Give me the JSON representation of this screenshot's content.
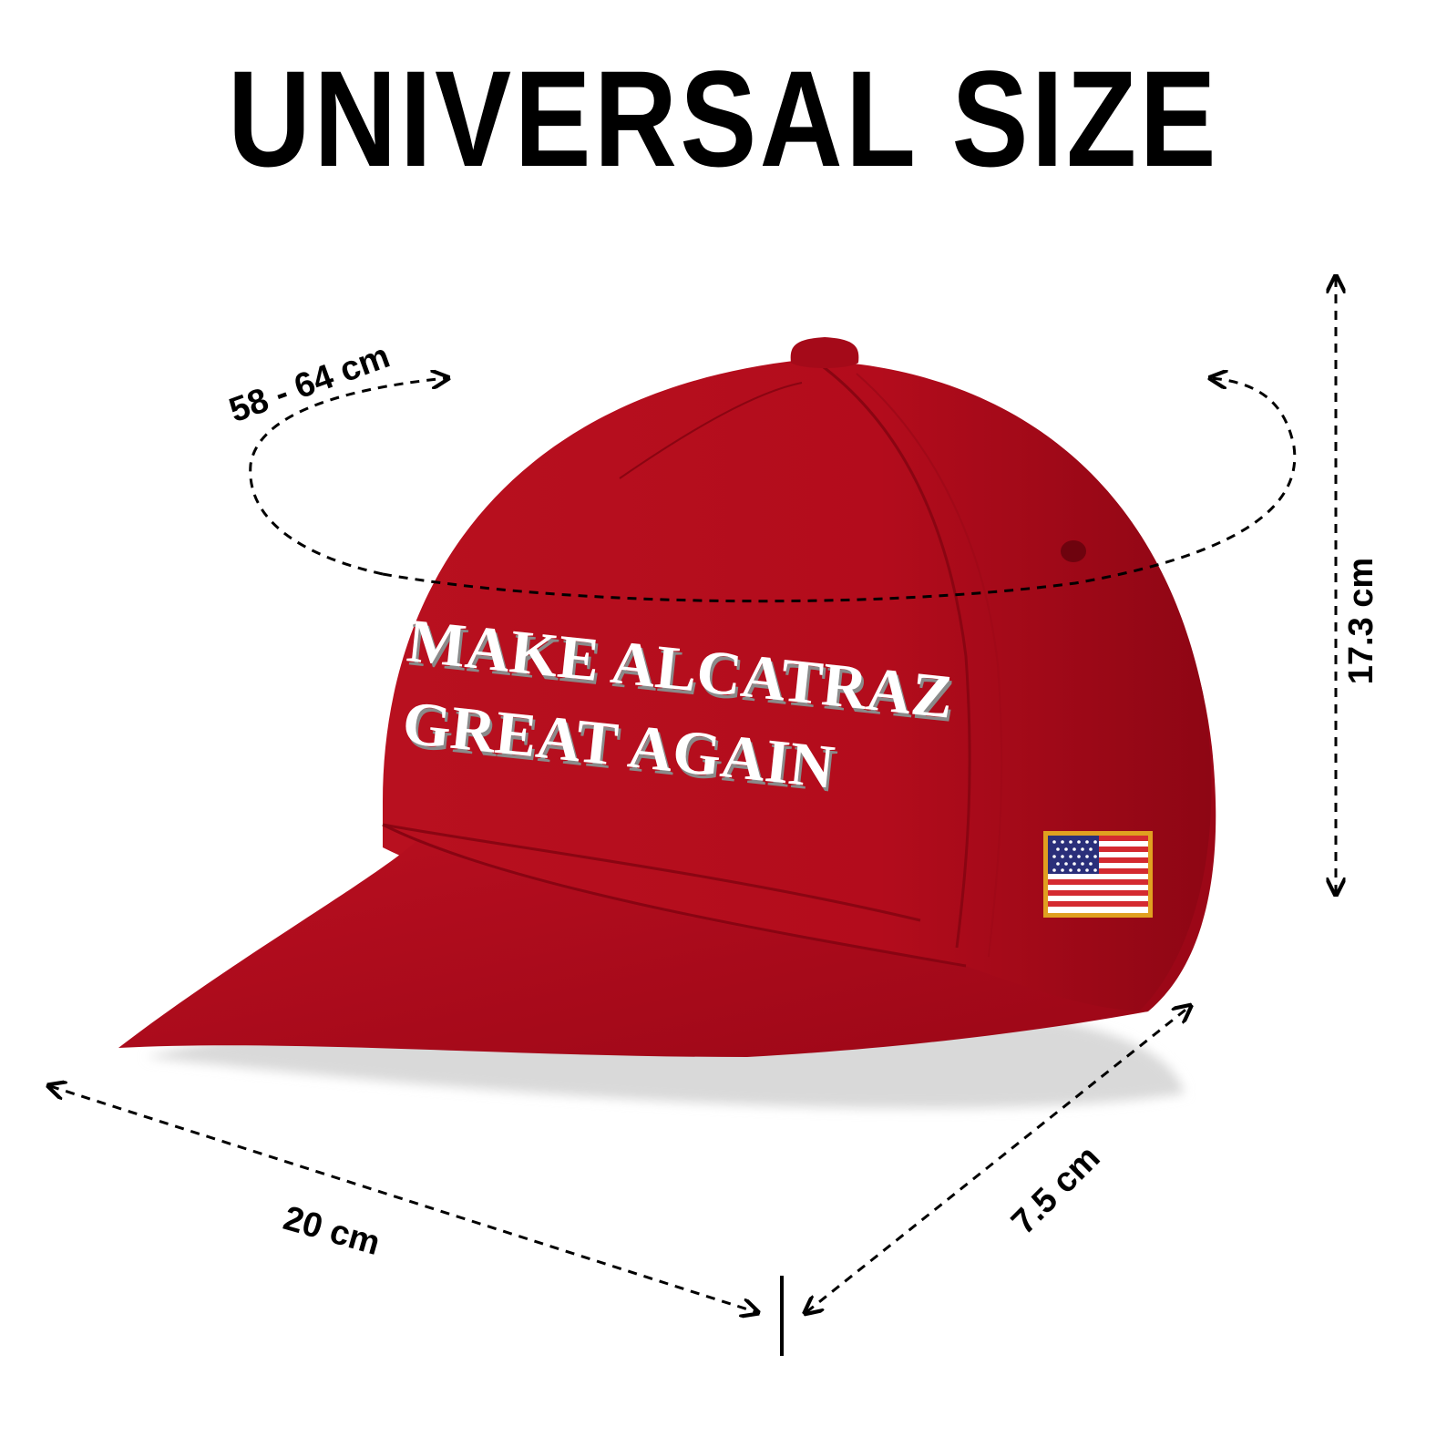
{
  "title": "UNIVERSAL SIZE",
  "hat": {
    "line1": "MAKE ALCATRAZ",
    "line2": "GREAT AGAIN",
    "color": "#b30c1c",
    "text_color": "#ffffff"
  },
  "dimensions": {
    "circumference": "58 - 64 cm",
    "height": "17.3 cm",
    "brim_length": "20 cm",
    "brim_depth": "7.5 cm"
  },
  "icons": [
    "flag-patch-icon"
  ]
}
